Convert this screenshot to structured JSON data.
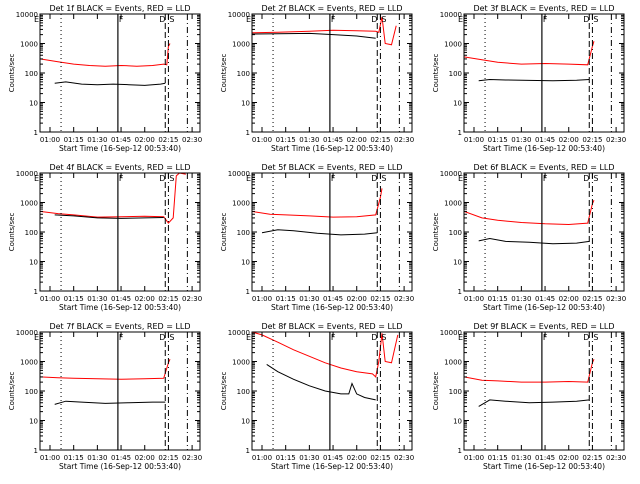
{
  "page": {
    "background": "#ffffff",
    "axis_color": "#000000",
    "events_color": "#000000",
    "lld_color": "#ff0000"
  },
  "shared": {
    "xlabel": "Start Time (16-Sep-12 00:53:40)",
    "ylabel": "Counts/sec",
    "xtick_labels": [
      "01:00",
      "01:15",
      "01:30",
      "01:45",
      "02:00",
      "02:15",
      "02:30"
    ],
    "ytick_labels": [
      "1",
      "10",
      "100",
      "1000",
      "10000"
    ],
    "marker_labels": {
      "E": "E",
      "F": "F",
      "D": "D",
      "S": "S"
    }
  },
  "chart_data": [
    {
      "type": "line",
      "title": "Det 1f BLACK = Events, RED = LLD",
      "ylog": true,
      "ylim": [
        1,
        10000
      ],
      "xlim": [
        "00:53:40",
        "02:35"
      ],
      "markers": [
        {
          "label": "E",
          "time": "00:53:40"
        },
        {
          "label": "F",
          "time": "01:43"
        },
        {
          "label": "D",
          "time": "02:13"
        },
        {
          "label": "S",
          "time": "02:15"
        }
      ],
      "series": [
        {
          "color": "#ff0000",
          "x": [
            "00:53:40",
            "01:05",
            "01:15",
            "01:25",
            "01:35",
            "01:45",
            "01:55",
            "02:05",
            "02:12",
            "02:14",
            "02:15",
            "02:16"
          ],
          "y": [
            300,
            240,
            200,
            180,
            170,
            180,
            170,
            180,
            200,
            190,
            800,
            1000
          ]
        },
        {
          "color": "#000000",
          "x": [
            "01:03",
            "01:10",
            "01:20",
            "01:30",
            "01:40",
            "01:50",
            "02:00",
            "02:10",
            "02:13"
          ],
          "y": [
            45,
            50,
            42,
            40,
            42,
            40,
            38,
            42,
            45
          ]
        }
      ]
    },
    {
      "type": "line",
      "title": "Det 2f BLACK = Events, RED = LLD",
      "ylog": true,
      "ylim": [
        1,
        10000
      ],
      "xlim": [
        "00:53:40",
        "02:35"
      ],
      "markers": [
        {
          "label": "E",
          "time": "00:53:40"
        },
        {
          "label": "F",
          "time": "01:43"
        },
        {
          "label": "D",
          "time": "02:13"
        },
        {
          "label": "S",
          "time": "02:15"
        }
      ],
      "series": [
        {
          "color": "#ff0000",
          "x": [
            "00:53:40",
            "01:10",
            "01:30",
            "01:45",
            "02:00",
            "02:12",
            "02:14",
            "02:16",
            "02:18",
            "02:22",
            "02:25"
          ],
          "y": [
            2300,
            2400,
            2600,
            2800,
            2700,
            2600,
            2400,
            8000,
            1000,
            900,
            4000
          ]
        },
        {
          "color": "#000000",
          "x": [
            "00:53:40",
            "01:10",
            "01:30",
            "01:45",
            "02:00",
            "02:12"
          ],
          "y": [
            2100,
            2150,
            2200,
            2000,
            1800,
            1500
          ]
        }
      ]
    },
    {
      "type": "line",
      "title": "Det 3f BLACK = Events, RED = LLD",
      "ylog": true,
      "ylim": [
        1,
        10000
      ],
      "xlim": [
        "00:53:40",
        "02:35"
      ],
      "markers": [
        {
          "label": "E",
          "time": "00:53:40"
        },
        {
          "label": "F",
          "time": "01:43"
        },
        {
          "label": "D",
          "time": "02:13"
        },
        {
          "label": "S",
          "time": "02:15"
        }
      ],
      "series": [
        {
          "color": "#ff0000",
          "x": [
            "00:53:40",
            "01:05",
            "01:15",
            "01:30",
            "01:45",
            "02:00",
            "02:12",
            "02:15",
            "02:16"
          ],
          "y": [
            350,
            280,
            230,
            200,
            210,
            200,
            190,
            800,
            1200
          ]
        },
        {
          "color": "#000000",
          "x": [
            "01:03",
            "01:10",
            "01:20",
            "01:35",
            "01:50",
            "02:05",
            "02:13"
          ],
          "y": [
            55,
            60,
            58,
            56,
            55,
            57,
            60
          ]
        }
      ]
    },
    {
      "type": "line",
      "title": "Det 4f BLACK = Events, RED = LLD",
      "ylog": true,
      "ylim": [
        1,
        10000
      ],
      "xlim": [
        "00:53:40",
        "02:35"
      ],
      "markers": [
        {
          "label": "E",
          "time": "00:53:40"
        },
        {
          "label": "F",
          "time": "01:43"
        },
        {
          "label": "D",
          "time": "02:13"
        },
        {
          "label": "S",
          "time": "02:15"
        }
      ],
      "series": [
        {
          "color": "#ff0000",
          "x": [
            "00:53:40",
            "01:05",
            "01:15",
            "01:30",
            "01:45",
            "02:00",
            "02:12",
            "02:15",
            "02:18",
            "02:20",
            "02:22",
            "02:26"
          ],
          "y": [
            500,
            420,
            380,
            320,
            330,
            340,
            330,
            200,
            300,
            8000,
            10000,
            9000
          ]
        },
        {
          "color": "#000000",
          "x": [
            "01:03",
            "01:15",
            "01:30",
            "01:45",
            "02:00",
            "02:12"
          ],
          "y": [
            380,
            350,
            300,
            290,
            300,
            310
          ]
        }
      ]
    },
    {
      "type": "line",
      "title": "Det 5f BLACK = Events, RED = LLD",
      "ylog": true,
      "ylim": [
        1,
        10000
      ],
      "xlim": [
        "00:53:40",
        "02:35"
      ],
      "markers": [
        {
          "label": "E",
          "time": "00:53:40"
        },
        {
          "label": "F",
          "time": "01:43"
        },
        {
          "label": "D",
          "time": "02:13"
        },
        {
          "label": "S",
          "time": "02:15"
        }
      ],
      "series": [
        {
          "color": "#ff0000",
          "x": [
            "00:53:40",
            "01:05",
            "01:15",
            "01:30",
            "01:45",
            "02:00",
            "02:12",
            "02:15",
            "02:16"
          ],
          "y": [
            500,
            400,
            380,
            350,
            320,
            330,
            380,
            1500,
            3000
          ]
        },
        {
          "color": "#000000",
          "x": [
            "01:00",
            "01:10",
            "01:20",
            "01:35",
            "01:50",
            "02:05",
            "02:13"
          ],
          "y": [
            95,
            120,
            110,
            90,
            80,
            85,
            95
          ]
        }
      ]
    },
    {
      "type": "line",
      "title": "Det 6f BLACK = Events, RED = LLD",
      "ylog": true,
      "ylim": [
        1,
        10000
      ],
      "xlim": [
        "00:53:40",
        "02:35"
      ],
      "markers": [
        {
          "label": "E",
          "time": "00:53:40"
        },
        {
          "label": "F",
          "time": "01:43"
        },
        {
          "label": "D",
          "time": "02:13"
        },
        {
          "label": "S",
          "time": "02:15"
        }
      ],
      "series": [
        {
          "color": "#ff0000",
          "x": [
            "00:53:40",
            "01:05",
            "01:15",
            "01:30",
            "01:45",
            "02:00",
            "02:12",
            "02:15",
            "02:16"
          ],
          "y": [
            500,
            300,
            250,
            210,
            190,
            180,
            200,
            900,
            1200
          ]
        },
        {
          "color": "#000000",
          "x": [
            "01:03",
            "01:10",
            "01:20",
            "01:35",
            "01:50",
            "02:05",
            "02:13"
          ],
          "y": [
            50,
            60,
            48,
            45,
            40,
            42,
            48
          ]
        }
      ]
    },
    {
      "type": "line",
      "title": "Det 7f BLACK = Events, RED = LLD",
      "ylog": true,
      "ylim": [
        1,
        10000
      ],
      "xlim": [
        "00:53:40",
        "02:35"
      ],
      "markers": [
        {
          "label": "E",
          "time": "00:53:40"
        },
        {
          "label": "F",
          "time": "01:43"
        },
        {
          "label": "D",
          "time": "02:13"
        },
        {
          "label": "S",
          "time": "02:15"
        }
      ],
      "series": [
        {
          "color": "#ff0000",
          "x": [
            "00:53:40",
            "01:05",
            "01:15",
            "01:30",
            "01:45",
            "02:00",
            "02:12",
            "02:15",
            "02:16"
          ],
          "y": [
            300,
            280,
            270,
            260,
            250,
            260,
            270,
            900,
            1200
          ]
        },
        {
          "color": "#000000",
          "x": [
            "01:03",
            "01:10",
            "01:20",
            "01:35",
            "01:50",
            "02:05",
            "02:13"
          ],
          "y": [
            35,
            45,
            42,
            38,
            40,
            42,
            42
          ]
        }
      ]
    },
    {
      "type": "line",
      "title": "Det 8f BLACK = Events, RED = LLD",
      "ylog": true,
      "ylim": [
        1,
        10000
      ],
      "xlim": [
        "00:53:40",
        "02:35"
      ],
      "markers": [
        {
          "label": "E",
          "time": "00:53:40"
        },
        {
          "label": "F",
          "time": "01:43"
        },
        {
          "label": "D",
          "time": "02:13"
        },
        {
          "label": "S",
          "time": "02:15"
        }
      ],
      "series": [
        {
          "color": "#ff0000",
          "x": [
            "00:53:40",
            "01:00",
            "01:10",
            "01:20",
            "01:30",
            "01:40",
            "01:50",
            "02:00",
            "02:10",
            "02:12",
            "02:14",
            "02:16",
            "02:18",
            "02:22",
            "02:26"
          ],
          "y": [
            10000,
            8000,
            4500,
            2500,
            1500,
            900,
            600,
            450,
            380,
            300,
            1000,
            9000,
            1000,
            900,
            8000
          ]
        },
        {
          "color": "#000000",
          "x": [
            "01:03",
            "01:10",
            "01:20",
            "01:30",
            "01:40",
            "01:50",
            "01:55",
            "01:57",
            "02:00",
            "02:05",
            "02:12"
          ],
          "y": [
            800,
            450,
            250,
            150,
            100,
            80,
            80,
            180,
            80,
            60,
            50
          ]
        }
      ]
    },
    {
      "type": "line",
      "title": "Det 9f BLACK = Events, RED = LLD",
      "ylog": true,
      "ylim": [
        1,
        10000
      ],
      "xlim": [
        "00:53:40",
        "02:35"
      ],
      "markers": [
        {
          "label": "E",
          "time": "00:53:40"
        },
        {
          "label": "F",
          "time": "01:43"
        },
        {
          "label": "D",
          "time": "02:13"
        },
        {
          "label": "S",
          "time": "02:15"
        }
      ],
      "series": [
        {
          "color": "#ff0000",
          "x": [
            "00:53:40",
            "01:05",
            "01:15",
            "01:30",
            "01:45",
            "02:00",
            "02:12",
            "02:15",
            "02:16"
          ],
          "y": [
            300,
            230,
            220,
            200,
            200,
            210,
            200,
            900,
            1200
          ]
        },
        {
          "color": "#000000",
          "x": [
            "01:03",
            "01:10",
            "01:20",
            "01:35",
            "01:50",
            "02:05",
            "02:13"
          ],
          "y": [
            30,
            50,
            45,
            40,
            42,
            45,
            50
          ]
        }
      ]
    }
  ]
}
